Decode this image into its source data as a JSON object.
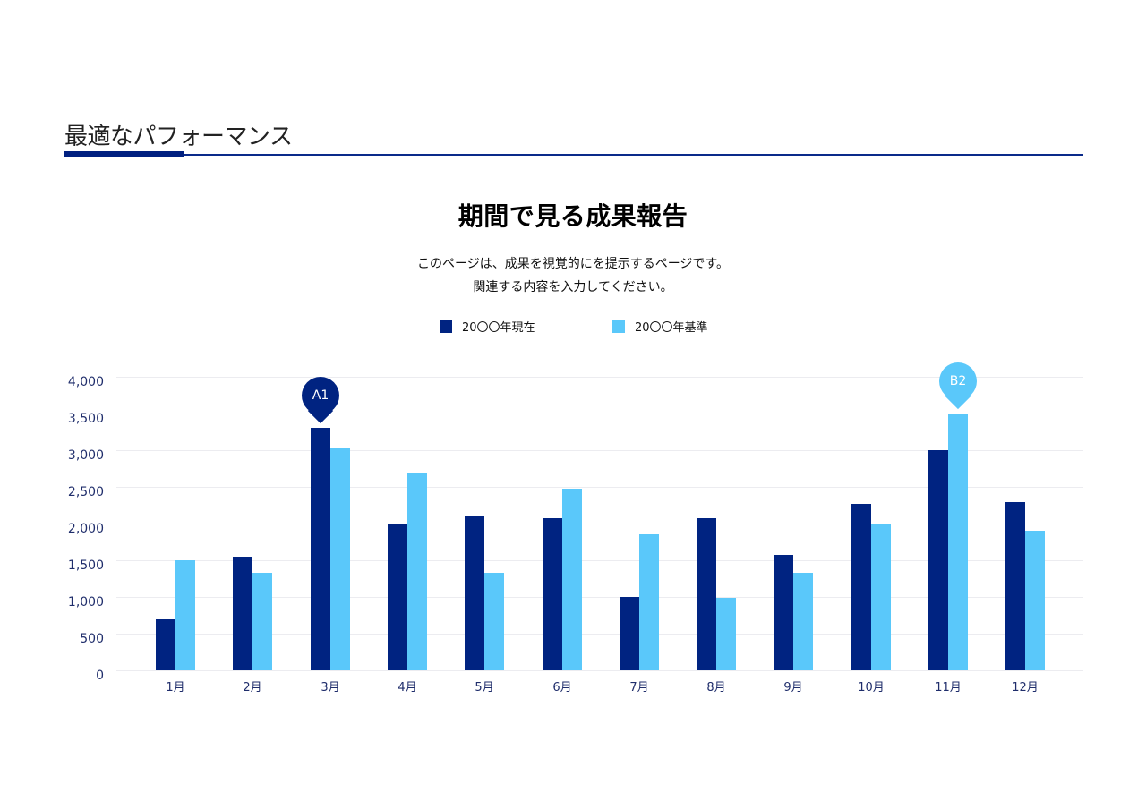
{
  "header": {
    "title": "最適なパフォーマンス"
  },
  "chart_header": {
    "title": "期間で見る成果報告",
    "description_line1": "このページは、成果を視覚的にを提示するページです。",
    "description_line2": "関連する内容を入力してください。"
  },
  "colors": {
    "series_current": "#002381",
    "series_baseline": "#5ac8fa",
    "gridline": "#ececf0",
    "axis_text": "#1f2d6b",
    "header_rule": "#0a2a8a"
  },
  "legend": [
    {
      "label": "20〇〇年現在",
      "color": "#002381"
    },
    {
      "label": "20〇〇年基準",
      "color": "#5ac8fa"
    }
  ],
  "annotations": [
    {
      "label": "A1",
      "month_index": 2,
      "series_index": 0,
      "color": "#002381"
    },
    {
      "label": "B2",
      "month_index": 10,
      "series_index": 1,
      "color": "#5ac8fa"
    }
  ],
  "chart_data": {
    "type": "bar",
    "title": "期間で見る成果報告",
    "xlabel": "",
    "ylabel": "",
    "categories": [
      "1月",
      "2月",
      "3月",
      "4月",
      "5月",
      "6月",
      "7月",
      "8月",
      "9月",
      "10月",
      "11月",
      "12月"
    ],
    "series": [
      {
        "name": "20〇〇年現在",
        "values": [
          700,
          1550,
          3300,
          2000,
          2100,
          2070,
          1000,
          2070,
          1570,
          2270,
          3000,
          2290
        ]
      },
      {
        "name": "20〇〇年基準",
        "values": [
          1500,
          1330,
          3040,
          2680,
          1330,
          2480,
          1850,
          990,
          1330,
          2000,
          3500,
          1900
        ]
      }
    ],
    "ylim": [
      0,
      4000
    ],
    "yticks": [
      "0",
      "500",
      "1,000",
      "1,500",
      "2,000",
      "2,500",
      "3,000",
      "3,500",
      "4,000"
    ],
    "grid": true,
    "legend_position": "top-center",
    "annotations": [
      "A1 (3月, 20〇〇年現在)",
      "B2 (11月, 20〇〇年基準)"
    ]
  }
}
